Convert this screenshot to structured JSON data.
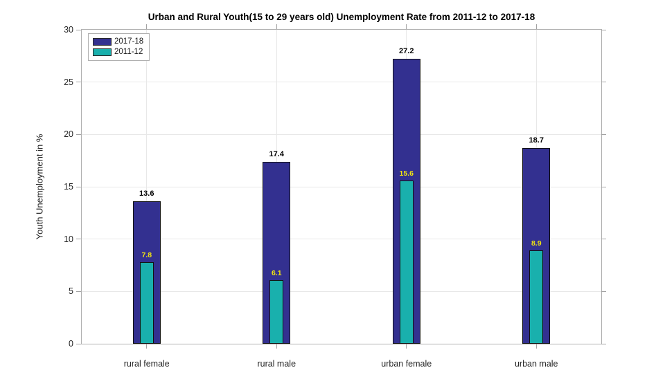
{
  "chart_data": {
    "type": "bar",
    "title": "Urban and Rural Youth(15 to 29 years old) Unemployment Rate from 2011-12 to 2017-18",
    "xlabel": "",
    "ylabel": "Youth Unemployment in %",
    "categories": [
      "rural female",
      "rural male",
      "urban female",
      "urban male"
    ],
    "series": [
      {
        "name": "2017-18",
        "color": "#333090",
        "label_color": "#000000",
        "values": [
          13.6,
          17.4,
          27.2,
          18.7
        ]
      },
      {
        "name": "2011-12",
        "color": "#19b0ad",
        "label_color": "#f2e411",
        "values": [
          7.8,
          6.1,
          15.6,
          8.9
        ]
      }
    ],
    "ylim": [
      0,
      30
    ],
    "yticks": [
      0,
      5,
      10,
      15,
      20,
      25,
      30
    ],
    "grid": true,
    "legend_position": "top-left",
    "bar_style": "overlaid"
  }
}
